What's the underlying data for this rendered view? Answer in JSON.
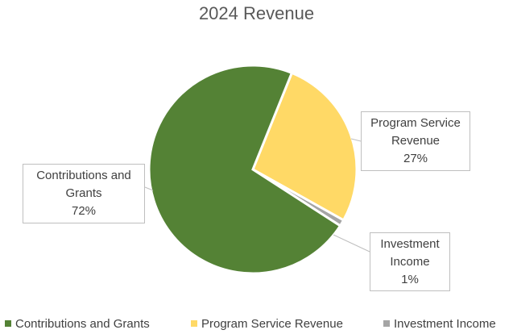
{
  "chart_data": {
    "type": "pie",
    "title": "2024 Revenue",
    "series": [
      {
        "name": "Contributions and Grants",
        "value": 72,
        "label": "72%",
        "color": "#548235"
      },
      {
        "name": "Program Service Revenue",
        "value": 27,
        "label": "27%",
        "color": "#FFD966"
      },
      {
        "name": "Investment Income",
        "value": 1,
        "label": "1%",
        "color": "#A5A5A5"
      }
    ],
    "callouts": [
      {
        "lines": [
          "Contributions and",
          "Grants"
        ],
        "pct": "72%"
      },
      {
        "lines": [
          "Program Service",
          "Revenue"
        ],
        "pct": "27%"
      },
      {
        "lines": [
          "Investment",
          "Income"
        ],
        "pct": "1%"
      }
    ],
    "legend": [
      "Contributions and Grants",
      "Program Service Revenue",
      "Investment Income"
    ],
    "legend_position": "bottom"
  }
}
